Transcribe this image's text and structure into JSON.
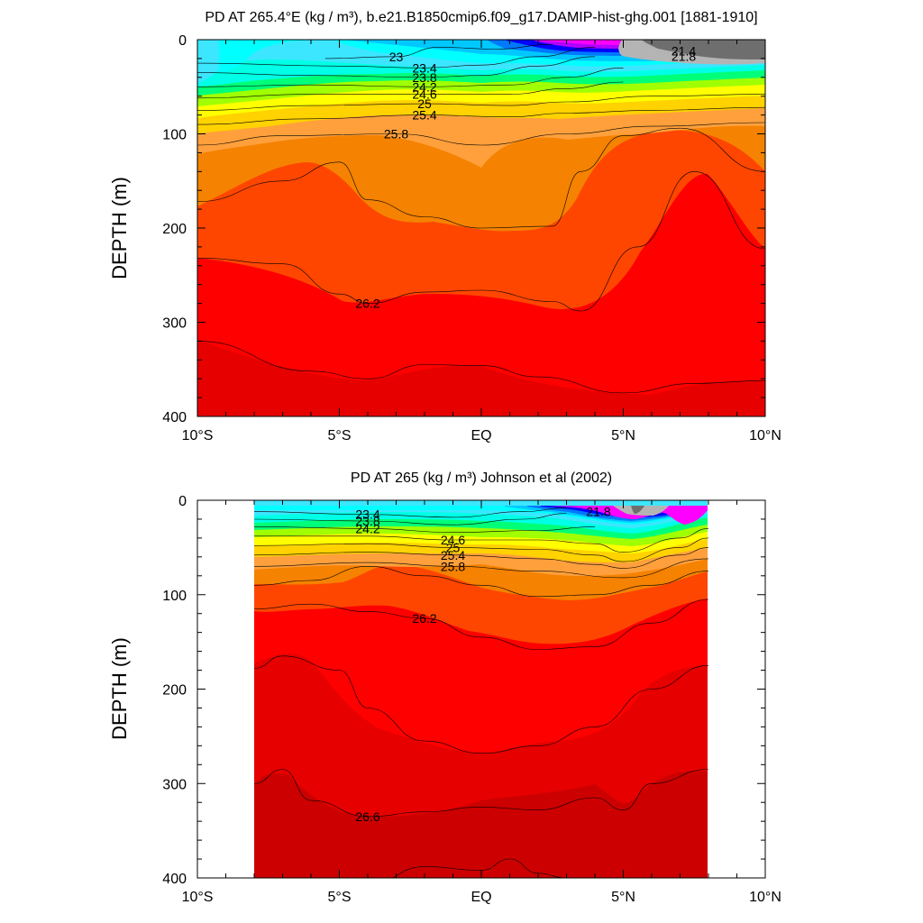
{
  "chart_data": [
    {
      "type": "contour",
      "title": "PD AT 265.4°E (kg / m³), b.e21.B1850cmip6.f09_g17.DAMIP-hist-ghg.001 [1881-1910]",
      "ylabel": "DEPTH (m)",
      "xlabel": "",
      "x_ticks": [
        "10°S",
        "5°S",
        "EQ",
        "5°N",
        "10°N"
      ],
      "x_tick_values": [
        -10,
        -5,
        0,
        5,
        10
      ],
      "y_ticks": [
        "0",
        "100",
        "200",
        "300",
        "400"
      ],
      "y_tick_values": [
        0,
        100,
        200,
        300,
        400
      ],
      "xlim": [
        -10,
        10
      ],
      "ylim": [
        0,
        400
      ],
      "y_inverted": true,
      "levels": [
        {
          "level": 20.6,
          "color": "#6e6e6e"
        },
        {
          "level": 21.0,
          "color": "#b4b4b4"
        },
        {
          "level": 21.4,
          "color": "#ff00ff"
        },
        {
          "level": 21.8,
          "color": "#b400ff"
        },
        {
          "level": 22.2,
          "color": "#0000ff"
        },
        {
          "level": 22.6,
          "color": "#0078ff"
        },
        {
          "level": 23.0,
          "color": "#00c8ff"
        },
        {
          "level": 23.4,
          "color": "#3ce6ff"
        },
        {
          "level": 23.8,
          "color": "#00ffe6"
        },
        {
          "level": 24.2,
          "color": "#00ff78"
        },
        {
          "level": 24.6,
          "color": "#a0ff00"
        },
        {
          "level": 25.0,
          "color": "#ffff00"
        },
        {
          "level": 25.4,
          "color": "#ffd200"
        },
        {
          "level": 25.8,
          "color": "#ffa03c"
        },
        {
          "level": 26.0,
          "color": "#f58200"
        },
        {
          "level": 26.2,
          "color": "#ff4600"
        },
        {
          "level": 26.4,
          "color": "#ff0000"
        },
        {
          "level": 26.6,
          "color": "#e60000"
        }
      ],
      "isolines": [
        {
          "level": 23.0,
          "points": [
            [
              -5.5,
              20
            ],
            [
              -3,
              18
            ],
            [
              -1.5,
              8
            ],
            [
              0.5,
              10
            ],
            [
              2.5,
              5
            ]
          ]
        },
        {
          "level": 23.4,
          "points": [
            [
              -10,
              25
            ],
            [
              -5,
              28
            ],
            [
              -2,
              30
            ],
            [
              0,
              27
            ],
            [
              2,
              18
            ],
            [
              4,
              8
            ]
          ]
        },
        {
          "level": 23.8,
          "points": [
            [
              -10,
              35
            ],
            [
              -6,
              38
            ],
            [
              -2,
              40
            ],
            [
              0,
              38
            ],
            [
              2,
              28
            ],
            [
              4,
              18
            ]
          ]
        },
        {
          "level": 24.2,
          "points": [
            [
              -10,
              50
            ],
            [
              -6,
              48
            ],
            [
              -2,
              50
            ],
            [
              1,
              48
            ],
            [
              3,
              40
            ],
            [
              5,
              30
            ]
          ]
        },
        {
          "level": 24.6,
          "points": [
            [
              -10,
              62
            ],
            [
              -6,
              58
            ],
            [
              -2,
              58
            ],
            [
              1,
              58
            ],
            [
              3,
              52
            ],
            [
              5,
              45
            ]
          ]
        },
        {
          "level": 25.0,
          "points": [
            [
              -10,
              75
            ],
            [
              -6,
              70
            ],
            [
              -2,
              68
            ],
            [
              1,
              70
            ],
            [
              3,
              66
            ],
            [
              6,
              60
            ],
            [
              10,
              58
            ]
          ]
        },
        {
          "level": 25.4,
          "points": [
            [
              -10,
              90
            ],
            [
              -6,
              84
            ],
            [
              -2,
              80
            ],
            [
              1,
              82
            ],
            [
              3,
              78
            ],
            [
              6,
              75
            ],
            [
              10,
              72
            ]
          ]
        },
        {
          "level": 25.8,
          "points": [
            [
              -10,
              112
            ],
            [
              -7,
              102
            ],
            [
              -3,
              100
            ],
            [
              0,
              112
            ],
            [
              3,
              100
            ],
            [
              6,
              92
            ],
            [
              10,
              88
            ]
          ]
        },
        {
          "level": 26.0,
          "points": [
            [
              -10,
              172
            ],
            [
              -7,
              150
            ],
            [
              -5,
              130
            ],
            [
              -4,
              170
            ],
            [
              -2,
              188
            ],
            [
              0,
              200
            ],
            [
              2.5,
              198
            ],
            [
              3.5,
              140
            ],
            [
              5,
              102
            ],
            [
              7,
              94
            ],
            [
              10,
              140
            ]
          ]
        },
        {
          "level": 26.2,
          "points": [
            [
              -10,
              232
            ],
            [
              -7,
              238
            ],
            [
              -5,
              270
            ],
            [
              -4,
              280
            ],
            [
              -2,
              268
            ],
            [
              0,
              266
            ],
            [
              2.5,
              278
            ],
            [
              3.5,
              288
            ],
            [
              5.5,
              220
            ],
            [
              7.5,
              140
            ],
            [
              10,
              222
            ]
          ]
        },
        {
          "level": 26.4,
          "points": [
            [
              -10,
              320
            ],
            [
              -6,
              352
            ],
            [
              -4,
              360
            ],
            [
              -2,
              345
            ],
            [
              0,
              346
            ],
            [
              2,
              358
            ],
            [
              5,
              375
            ],
            [
              7.5,
              365
            ],
            [
              10,
              362
            ]
          ]
        }
      ],
      "contour_labels": [
        "23",
        "23.4",
        "23.8",
        "24.2",
        "24.6",
        "25",
        "25.4",
        "25.8",
        "26.2",
        "21.4",
        "21.8"
      ]
    },
    {
      "type": "contour",
      "title": "PD AT 265 (kg / m³) Johnson et al (2002)",
      "ylabel": "DEPTH (m)",
      "xlabel": "",
      "x_ticks": [
        "10°S",
        "5°S",
        "EQ",
        "5°N",
        "10°N"
      ],
      "x_tick_values": [
        -10,
        -5,
        0,
        5,
        10
      ],
      "y_ticks": [
        "0",
        "100",
        "200",
        "300",
        "400"
      ],
      "y_tick_values": [
        0,
        100,
        200,
        300,
        400
      ],
      "xlim": [
        -10,
        10
      ],
      "ylim": [
        0,
        400
      ],
      "data_xrange": [
        -8,
        8
      ],
      "y_inverted": true,
      "isolines": [
        {
          "level": 23.4,
          "points": [
            [
              -8,
              12
            ],
            [
              -4,
              15
            ],
            [
              -1,
              18
            ],
            [
              1.5,
              12
            ],
            [
              3,
              8
            ]
          ]
        },
        {
          "level": 23.8,
          "points": [
            [
              -8,
              20
            ],
            [
              -4,
              22
            ],
            [
              -1,
              26
            ],
            [
              1.5,
              20
            ],
            [
              3,
              14
            ]
          ]
        },
        {
          "level": 24.2,
          "points": [
            [
              -8,
              28
            ],
            [
              -4,
              30
            ],
            [
              -1,
              34
            ],
            [
              2,
              32
            ],
            [
              4,
              28
            ]
          ]
        },
        {
          "level": 24.6,
          "points": [
            [
              -8,
              38
            ],
            [
              -4,
              38
            ],
            [
              -1,
              42
            ],
            [
              2,
              42
            ],
            [
              4,
              46
            ],
            [
              5,
              55
            ],
            [
              7,
              40
            ],
            [
              8,
              30
            ]
          ]
        },
        {
          "level": 25.0,
          "points": [
            [
              -8,
              48
            ],
            [
              -4,
              46
            ],
            [
              -1,
              50
            ],
            [
              2,
              52
            ],
            [
              4,
              58
            ],
            [
              5,
              65
            ],
            [
              7,
              50
            ],
            [
              8,
              40
            ]
          ]
        },
        {
          "level": 25.4,
          "points": [
            [
              -8,
              58
            ],
            [
              -4,
              55
            ],
            [
              -1,
              58
            ],
            [
              2,
              62
            ],
            [
              4,
              68
            ],
            [
              5,
              72
            ],
            [
              7,
              58
            ],
            [
              8,
              50
            ]
          ]
        },
        {
          "level": 25.8,
          "points": [
            [
              -8,
              70
            ],
            [
              -4,
              66
            ],
            [
              -1,
              70
            ],
            [
              2,
              75
            ],
            [
              5,
              82
            ],
            [
              8,
              62
            ]
          ]
        },
        {
          "level": 26.0,
          "points": [
            [
              -8,
              90
            ],
            [
              -6,
              85
            ],
            [
              -4,
              70
            ],
            [
              -2,
              80
            ],
            [
              0,
              90
            ],
            [
              2,
              102
            ],
            [
              4,
              100
            ],
            [
              6,
              90
            ],
            [
              8,
              75
            ]
          ]
        },
        {
          "level": 26.2,
          "points": [
            [
              -8,
              115
            ],
            [
              -6,
              110
            ],
            [
              -4,
              118
            ],
            [
              -2,
              125
            ],
            [
              0,
              145
            ],
            [
              2,
              158
            ],
            [
              4,
              155
            ],
            [
              6,
              130
            ],
            [
              8,
              105
            ]
          ]
        },
        {
          "level": 26.4,
          "points": [
            [
              -8,
              178
            ],
            [
              -7,
              165
            ],
            [
              -5,
              180
            ],
            [
              -4,
              220
            ],
            [
              -2,
              255
            ],
            [
              0,
              268
            ],
            [
              2,
              260
            ],
            [
              4,
              240
            ],
            [
              6,
              200
            ],
            [
              8,
              175
            ]
          ]
        },
        {
          "level": 26.6,
          "points": [
            [
              -8,
              300
            ],
            [
              -7,
              285
            ],
            [
              -6,
              318
            ],
            [
              -4,
              335
            ],
            [
              -2,
              330
            ],
            [
              0,
              325
            ],
            [
              2,
              328
            ],
            [
              4,
              315
            ],
            [
              5,
              328
            ],
            [
              6,
              300
            ],
            [
              8,
              285
            ]
          ]
        },
        {
          "level": 26.8,
          "points": [
            [
              -8,
              420
            ],
            [
              -4,
              408
            ],
            [
              -2,
              388
            ],
            [
              0,
              392
            ],
            [
              1,
              380
            ],
            [
              2,
              395
            ],
            [
              3,
              400
            ],
            [
              8,
              420
            ]
          ]
        }
      ],
      "contour_labels": [
        "23.4",
        "23.8",
        "24.2",
        "24.6",
        "25",
        "25.4",
        "25.8",
        "26.2",
        "26.6",
        "21.8"
      ]
    }
  ]
}
